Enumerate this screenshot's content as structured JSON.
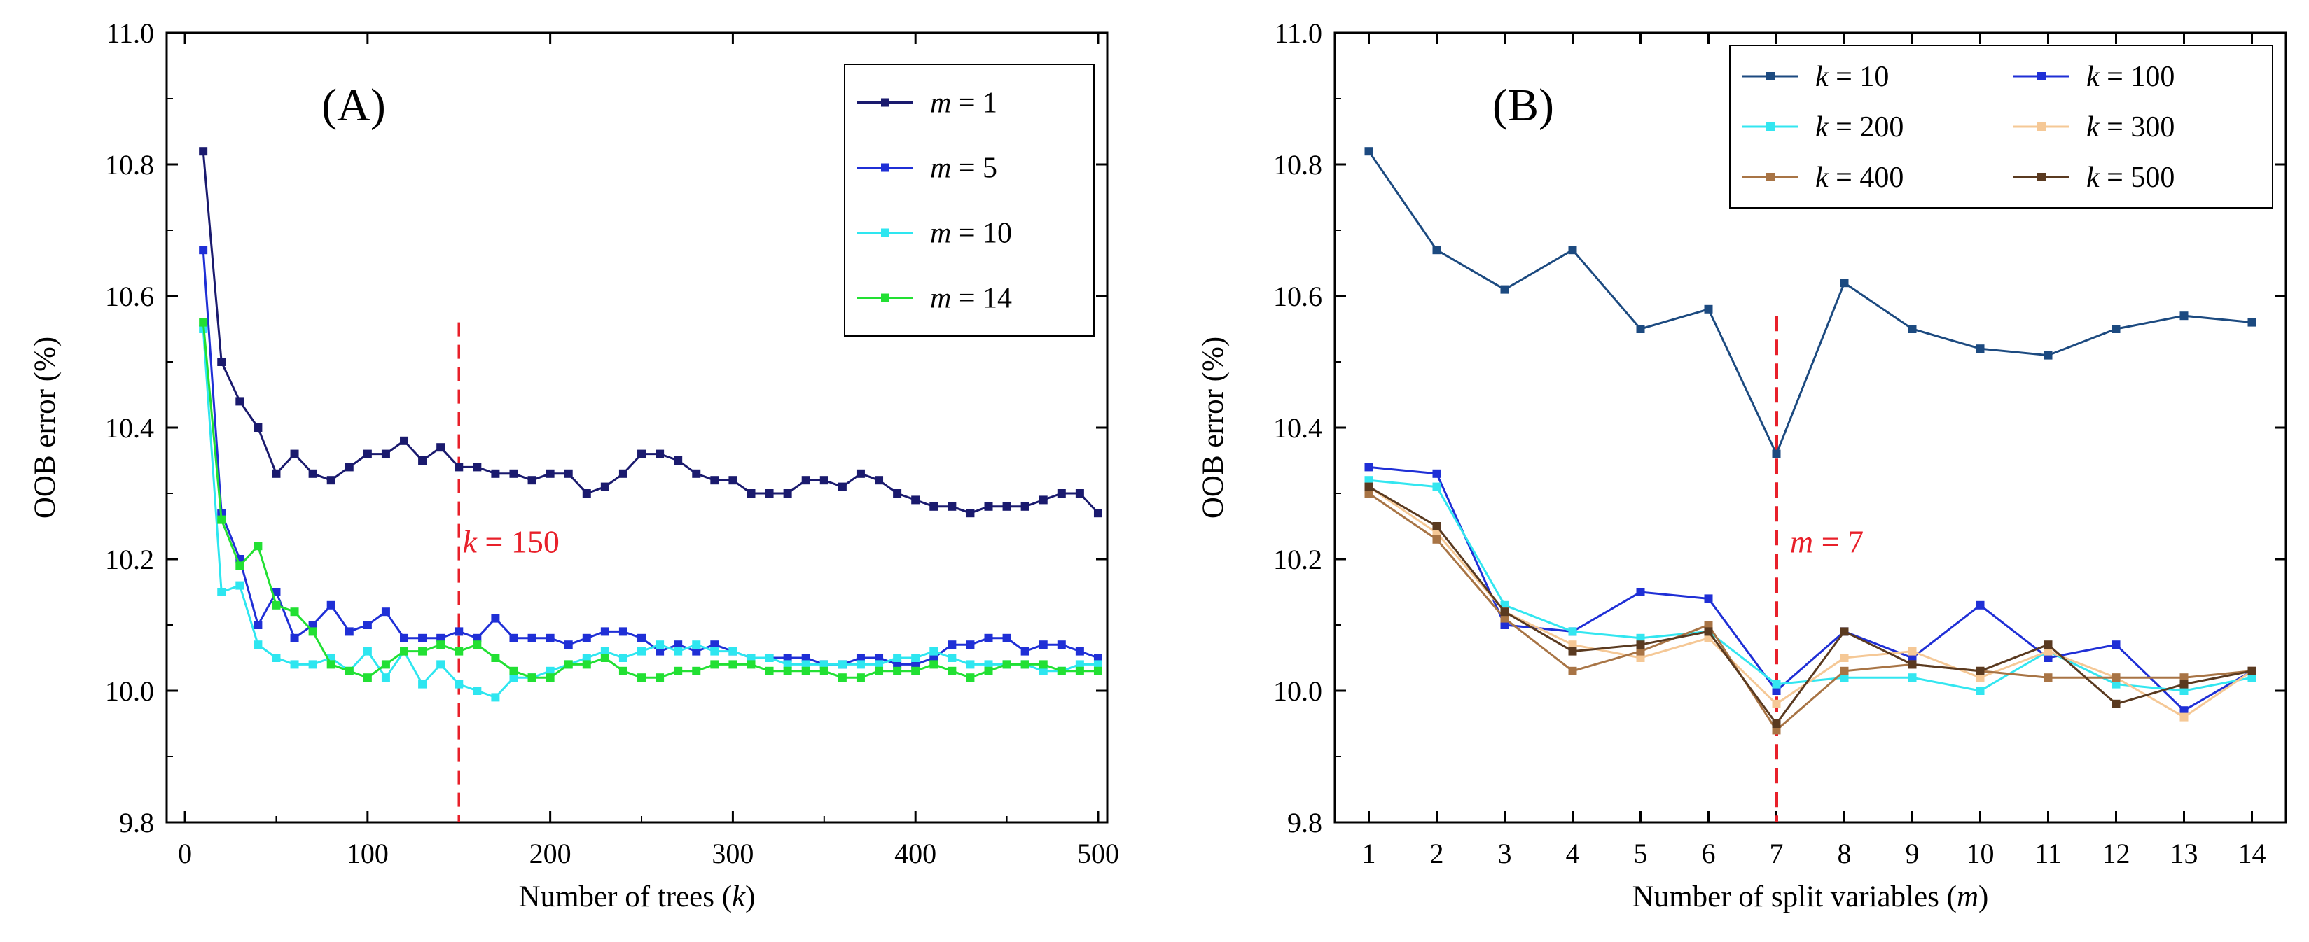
{
  "chart_data": [
    {
      "type": "line",
      "panel_label": "(A)",
      "xlabel_pre": "Number of trees (",
      "xlabel_var": "k",
      "xlabel_post": ")",
      "ylabel": "OOB error (%)",
      "xlim": [
        -10,
        505
      ],
      "ylim": [
        9.8,
        11.0
      ],
      "xticks": [
        0,
        100,
        200,
        300,
        400,
        500
      ],
      "yticks": [
        9.8,
        10.0,
        10.2,
        10.4,
        10.6,
        10.8,
        11.0
      ],
      "ytick_labels": [
        "9.8",
        "10.0",
        "10.2",
        "10.4",
        "10.6",
        "10.8",
        "11.0"
      ],
      "x": [
        10,
        20,
        30,
        40,
        50,
        60,
        70,
        80,
        90,
        100,
        110,
        120,
        130,
        140,
        150,
        160,
        170,
        180,
        190,
        200,
        210,
        220,
        230,
        240,
        250,
        260,
        270,
        280,
        290,
        300,
        310,
        320,
        330,
        340,
        350,
        360,
        370,
        380,
        390,
        400,
        410,
        420,
        430,
        440,
        450,
        460,
        470,
        480,
        490,
        500
      ],
      "series": [
        {
          "name": "m = 1",
          "var": "m",
          "eq": " = 1",
          "color": "#1a1a6e",
          "values": [
            10.82,
            10.5,
            10.44,
            10.4,
            10.33,
            10.36,
            10.33,
            10.32,
            10.34,
            10.36,
            10.36,
            10.38,
            10.35,
            10.37,
            10.34,
            10.34,
            10.33,
            10.33,
            10.32,
            10.33,
            10.33,
            10.3,
            10.31,
            10.33,
            10.36,
            10.36,
            10.35,
            10.33,
            10.32,
            10.32,
            10.3,
            10.3,
            10.3,
            10.32,
            10.32,
            10.31,
            10.33,
            10.32,
            10.3,
            10.29,
            10.28,
            10.28,
            10.27,
            10.28,
            10.28,
            10.28,
            10.29,
            10.3,
            10.3,
            10.27
          ]
        },
        {
          "name": "m = 5",
          "var": "m",
          "eq": " = 5",
          "color": "#1f2fd6",
          "values": [
            10.67,
            10.27,
            10.2,
            10.1,
            10.15,
            10.08,
            10.1,
            10.13,
            10.09,
            10.1,
            10.12,
            10.08,
            10.08,
            10.08,
            10.09,
            10.08,
            10.11,
            10.08,
            10.08,
            10.08,
            10.07,
            10.08,
            10.09,
            10.09,
            10.08,
            10.06,
            10.07,
            10.06,
            10.07,
            10.06,
            10.05,
            10.05,
            10.05,
            10.05,
            10.04,
            10.04,
            10.05,
            10.05,
            10.04,
            10.04,
            10.05,
            10.07,
            10.07,
            10.08,
            10.08,
            10.06,
            10.07,
            10.07,
            10.06,
            10.05
          ]
        },
        {
          "name": "m = 10",
          "var": "m",
          "eq": " = 10",
          "color": "#2ee6f0",
          "values": [
            10.55,
            10.15,
            10.16,
            10.07,
            10.05,
            10.04,
            10.04,
            10.05,
            10.03,
            10.06,
            10.02,
            10.06,
            10.01,
            10.04,
            10.01,
            10.0,
            9.99,
            10.02,
            10.02,
            10.03,
            10.04,
            10.05,
            10.06,
            10.05,
            10.06,
            10.07,
            10.06,
            10.07,
            10.06,
            10.06,
            10.05,
            10.05,
            10.04,
            10.04,
            10.04,
            10.04,
            10.04,
            10.04,
            10.05,
            10.05,
            10.06,
            10.05,
            10.04,
            10.04,
            10.04,
            10.04,
            10.03,
            10.03,
            10.04,
            10.04
          ]
        },
        {
          "name": "m = 14",
          "var": "m",
          "eq": " = 14",
          "color": "#22e033",
          "values": [
            10.56,
            10.26,
            10.19,
            10.22,
            10.13,
            10.12,
            10.09,
            10.04,
            10.03,
            10.02,
            10.04,
            10.06,
            10.06,
            10.07,
            10.06,
            10.07,
            10.05,
            10.03,
            10.02,
            10.02,
            10.04,
            10.04,
            10.05,
            10.03,
            10.02,
            10.02,
            10.03,
            10.03,
            10.04,
            10.04,
            10.04,
            10.03,
            10.03,
            10.03,
            10.03,
            10.02,
            10.02,
            10.03,
            10.03,
            10.03,
            10.04,
            10.03,
            10.02,
            10.03,
            10.04,
            10.04,
            10.04,
            10.03,
            10.03,
            10.03
          ]
        }
      ],
      "annotation": {
        "at_x": 150,
        "var": "k",
        "text": " = 150",
        "color": "#e8202a",
        "label_pos": [
          152,
          10.21
        ]
      },
      "legend_position": "top-right"
    },
    {
      "type": "line",
      "panel_label": "(B)",
      "xlabel_pre": "Number of split variables (",
      "xlabel_var": "m",
      "xlabel_post": ")",
      "ylabel": "OOB error (%)",
      "xlim": [
        0.5,
        14.5
      ],
      "ylim": [
        9.8,
        11.0
      ],
      "xticks": [
        1,
        2,
        3,
        4,
        5,
        6,
        7,
        8,
        9,
        10,
        11,
        12,
        13,
        14
      ],
      "yticks": [
        9.8,
        10.0,
        10.2,
        10.4,
        10.6,
        10.8,
        11.0
      ],
      "ytick_labels": [
        "9.8",
        "10.0",
        "10.2",
        "10.4",
        "10.6",
        "10.8",
        "11.0"
      ],
      "x": [
        1,
        2,
        3,
        4,
        5,
        6,
        7,
        8,
        9,
        10,
        11,
        12,
        13,
        14
      ],
      "series": [
        {
          "name": "k = 10",
          "var": "k",
          "eq": " = 10",
          "color": "#1c4a80",
          "values": [
            10.82,
            10.67,
            10.61,
            10.67,
            10.55,
            10.58,
            10.36,
            10.62,
            10.55,
            10.52,
            10.51,
            10.55,
            10.57,
            10.56
          ]
        },
        {
          "name": "k = 100",
          "var": "k",
          "eq": " = 100",
          "color": "#1f2fd6",
          "values": [
            10.34,
            10.33,
            10.1,
            10.09,
            10.15,
            10.14,
            10.0,
            10.09,
            10.05,
            10.13,
            10.05,
            10.07,
            9.97,
            10.03
          ]
        },
        {
          "name": "k = 200",
          "var": "k",
          "eq": " = 200",
          "color": "#33e6f0",
          "values": [
            10.32,
            10.31,
            10.13,
            10.09,
            10.08,
            10.09,
            10.01,
            10.02,
            10.02,
            10.0,
            10.06,
            10.01,
            10.0,
            10.02
          ]
        },
        {
          "name": "k = 300",
          "var": "k",
          "eq": " = 300",
          "color": "#f5c896",
          "values": [
            10.31,
            10.24,
            10.12,
            10.07,
            10.05,
            10.08,
            9.98,
            10.05,
            10.06,
            10.02,
            10.06,
            10.02,
            9.96,
            10.03
          ]
        },
        {
          "name": "k = 400",
          "var": "k",
          "eq": " = 400",
          "color": "#a87445",
          "values": [
            10.3,
            10.23,
            10.11,
            10.03,
            10.06,
            10.1,
            9.94,
            10.03,
            10.04,
            10.03,
            10.02,
            10.02,
            10.02,
            10.03
          ]
        },
        {
          "name": "k = 500",
          "var": "k",
          "eq": " = 500",
          "color": "#5a3a20",
          "values": [
            10.31,
            10.25,
            10.12,
            10.06,
            10.07,
            10.09,
            9.95,
            10.09,
            10.04,
            10.03,
            10.07,
            9.98,
            10.01,
            10.03
          ]
        }
      ],
      "annotation": {
        "at_x": 7,
        "var": "m",
        "text": " = 7",
        "color": "#e8202a",
        "label_pos": [
          7.2,
          10.21
        ]
      },
      "legend_position": "top-right"
    }
  ]
}
